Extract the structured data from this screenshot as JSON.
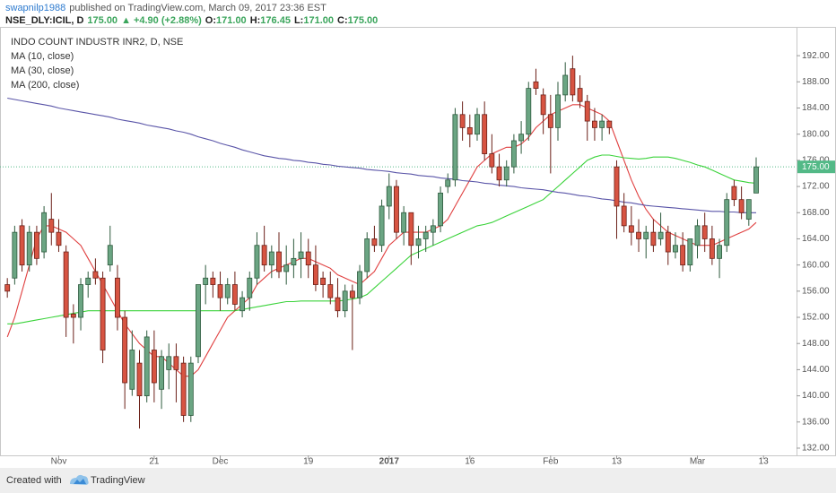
{
  "header": {
    "author": "swapnilp1988",
    "published": "published on TradingView.com, March 09, 2017 23:36 EST",
    "symbol": "NSE_DLY:ICIL, D",
    "price": "175.00",
    "change": "+4.90 (+2.88%)",
    "ohlc": [
      {
        "label": "O:",
        "value": "171.00"
      },
      {
        "label": "H:",
        "value": "176.45"
      },
      {
        "label": "L:",
        "value": "171.00"
      },
      {
        "label": "C:",
        "value": "175.00"
      }
    ]
  },
  "footer": {
    "created": "Created with",
    "brand": "TradingView"
  },
  "chart_data": {
    "type": "candlestick",
    "title": "INDO COUNT INDUSTR INR2, D, NSE",
    "up_color": "#6ba583",
    "down_color": "#d75442",
    "xlim": [
      -1,
      107.5
    ],
    "ylim": [
      130.9,
      196.4
    ],
    "xticks": [
      {
        "value": 7,
        "label": "Nov"
      },
      {
        "value": 20,
        "label": "21"
      },
      {
        "value": 29,
        "label": "Dec"
      },
      {
        "value": 41,
        "label": "19"
      },
      {
        "value": 52,
        "label": "2017"
      },
      {
        "value": 63,
        "label": "16"
      },
      {
        "value": 74,
        "label": "Feb"
      },
      {
        "value": 83,
        "label": "13"
      },
      {
        "value": 94,
        "label": "Mar"
      },
      {
        "value": 103,
        "label": "13"
      }
    ],
    "yticks": [
      {
        "value": 132,
        "label": "132.00"
      },
      {
        "value": 136,
        "label": "136.00"
      },
      {
        "value": 140,
        "label": "140.00"
      },
      {
        "value": 144,
        "label": "144.00"
      },
      {
        "value": 148,
        "label": "148.00"
      },
      {
        "value": 152,
        "label": "152.00"
      },
      {
        "value": 156,
        "label": "156.00"
      },
      {
        "value": 160,
        "label": "160.00"
      },
      {
        "value": 164,
        "label": "164.00"
      },
      {
        "value": 168,
        "label": "168.00"
      },
      {
        "value": 172,
        "label": "172.00"
      },
      {
        "value": 176,
        "label": "176.00"
      },
      {
        "value": 180,
        "label": "180.00"
      },
      {
        "value": 184,
        "label": "184.00"
      },
      {
        "value": 188,
        "label": "188.00"
      },
      {
        "value": 192,
        "label": "192.00"
      }
    ],
    "last_price": {
      "value": 175,
      "label": "175.00"
    },
    "last_price_color": "#53b987",
    "ohlc": [
      [
        157,
        158,
        155,
        156
      ],
      [
        158,
        166,
        157,
        165
      ],
      [
        166,
        167,
        159,
        160
      ],
      [
        160,
        166,
        159,
        165
      ],
      [
        165,
        166,
        160,
        161
      ],
      [
        162,
        169,
        161,
        168
      ],
      [
        167,
        171,
        163,
        165
      ],
      [
        165,
        167,
        162,
        163
      ],
      [
        162,
        163,
        149,
        152
      ],
      [
        152.5,
        154,
        148,
        152
      ],
      [
        152,
        158,
        150,
        157
      ],
      [
        157,
        159,
        155,
        158
      ],
      [
        159,
        161,
        157,
        158
      ],
      [
        158,
        159,
        145,
        147
      ],
      [
        160,
        166,
        159,
        163
      ],
      [
        158,
        160,
        150,
        152
      ],
      [
        152,
        153,
        138,
        142
      ],
      [
        141,
        150,
        140,
        147
      ],
      [
        145,
        147,
        135,
        140
      ],
      [
        140,
        150,
        139,
        149
      ],
      [
        147,
        150,
        139,
        142
      ],
      [
        141,
        147,
        138,
        146
      ],
      [
        144,
        148,
        141,
        146
      ],
      [
        146,
        148,
        139,
        144
      ],
      [
        145,
        146,
        136,
        137
      ],
      [
        137,
        146,
        136,
        145
      ],
      [
        146,
        157,
        145,
        157
      ],
      [
        157,
        160,
        154,
        158
      ],
      [
        158,
        159,
        155,
        157
      ],
      [
        157,
        159,
        153,
        155
      ],
      [
        155,
        158,
        154,
        157
      ],
      [
        157,
        159,
        153,
        154
      ],
      [
        153,
        156,
        152,
        155
      ],
      [
        155,
        159,
        153,
        158
      ],
      [
        158,
        165,
        157,
        163
      ],
      [
        163,
        166,
        159,
        160
      ],
      [
        160,
        163,
        158,
        162
      ],
      [
        162,
        165,
        158,
        159
      ],
      [
        159,
        163,
        157,
        160
      ],
      [
        160,
        164,
        158,
        161
      ],
      [
        161,
        165,
        158,
        162
      ],
      [
        162,
        164,
        158,
        160
      ],
      [
        160,
        163,
        156,
        157
      ],
      [
        158,
        159,
        155,
        157
      ],
      [
        157,
        159,
        154,
        155
      ],
      [
        155,
        158,
        152,
        153
      ],
      [
        153,
        157,
        152,
        156
      ],
      [
        156,
        157,
        147,
        155
      ],
      [
        155,
        160,
        154,
        159
      ],
      [
        159,
        165,
        158,
        164
      ],
      [
        164,
        166,
        162,
        163
      ],
      [
        163,
        170,
        162,
        169
      ],
      [
        169,
        174,
        167,
        172
      ],
      [
        172,
        173,
        164,
        165
      ],
      [
        165,
        169,
        163,
        168
      ],
      [
        168,
        168,
        160,
        163
      ],
      [
        163,
        166,
        161,
        164
      ],
      [
        164,
        166,
        162,
        165
      ],
      [
        165,
        167,
        163,
        166
      ],
      [
        166,
        172,
        165,
        171
      ],
      [
        172,
        174,
        171,
        173
      ],
      [
        173,
        184,
        172,
        183
      ],
      [
        183,
        185,
        179,
        181
      ],
      [
        181,
        183,
        178,
        180
      ],
      [
        180,
        184,
        179,
        183
      ],
      [
        183,
        185,
        176,
        177
      ],
      [
        177,
        180,
        174,
        175
      ],
      [
        175,
        177,
        172,
        173
      ],
      [
        173,
        176,
        172,
        175
      ],
      [
        175,
        180,
        174,
        179
      ],
      [
        179,
        182,
        177,
        180
      ],
      [
        180,
        188,
        179,
        187
      ],
      [
        188,
        190,
        186,
        187
      ],
      [
        186,
        187,
        180,
        183
      ],
      [
        183,
        186,
        174,
        181
      ],
      [
        181,
        188,
        179,
        186
      ],
      [
        186,
        191,
        185,
        189
      ],
      [
        190,
        192,
        185,
        186
      ],
      [
        187,
        189,
        184,
        185
      ],
      [
        185,
        186,
        179,
        182
      ],
      [
        182,
        184,
        179,
        181
      ],
      [
        181,
        183,
        179,
        182
      ],
      [
        182,
        182,
        180,
        181
      ],
      [
        175,
        176,
        164,
        169
      ],
      [
        169,
        171,
        165,
        166
      ],
      [
        166,
        169,
        163,
        165
      ],
      [
        165,
        167,
        162,
        164
      ],
      [
        164,
        166,
        161,
        165
      ],
      [
        165,
        167,
        162,
        163
      ],
      [
        164,
        168,
        163,
        165
      ],
      [
        165,
        166,
        160,
        162
      ],
      [
        162,
        165,
        161,
        163
      ],
      [
        163,
        165,
        159,
        160
      ],
      [
        160,
        164,
        159,
        164
      ],
      [
        163,
        167,
        161,
        166
      ],
      [
        166,
        168,
        162,
        164
      ],
      [
        164,
        166,
        160,
        161
      ],
      [
        161,
        164,
        158,
        163
      ],
      [
        163,
        171,
        162,
        170
      ],
      [
        172,
        173,
        169,
        170
      ],
      [
        170,
        172,
        167,
        168
      ],
      [
        167,
        170,
        166,
        170
      ],
      [
        171,
        176.45,
        171,
        175
      ]
    ],
    "series": [
      {
        "name": "MA (10, close)",
        "color": "#e04040",
        "values": [
          149,
          152,
          156,
          160,
          164,
          166,
          166,
          165.5,
          165,
          164,
          163,
          161,
          159,
          157,
          155,
          153,
          151,
          149.5,
          148,
          147,
          146,
          146,
          145,
          144,
          143,
          143,
          144,
          146,
          148,
          150,
          152,
          153,
          154,
          155,
          157,
          158,
          159,
          159.5,
          160,
          160.5,
          161,
          161,
          160.5,
          160,
          159.5,
          158.5,
          158,
          157.5,
          157,
          158,
          159,
          161,
          163,
          164,
          165,
          165,
          165,
          165,
          165.5,
          166,
          167,
          169,
          171,
          173,
          175,
          176,
          177,
          177.5,
          178,
          178,
          178.5,
          179.5,
          181,
          182,
          183,
          183.5,
          184,
          184.5,
          184.5,
          184,
          183.5,
          183,
          182,
          179,
          176,
          173,
          170.5,
          168.5,
          167,
          166,
          165,
          164.5,
          164,
          163.5,
          163,
          163,
          163,
          163.5,
          164,
          164.5,
          165,
          165.5,
          166.5
        ]
      },
      {
        "name": "MA (30, close)",
        "color": "#3ad33a",
        "values": [
          151,
          151,
          151.2,
          151.4,
          151.6,
          151.8,
          152,
          152.2,
          152.4,
          152.6,
          152.8,
          153,
          153,
          153,
          153,
          153,
          153,
          153,
          153,
          153,
          153,
          153,
          153,
          153,
          153,
          153,
          153,
          153,
          153,
          153,
          153,
          153,
          153.2,
          153.4,
          153.6,
          153.8,
          154,
          154.2,
          154.4,
          154.4,
          154.5,
          154.5,
          154.5,
          154.5,
          154.5,
          154.5,
          154.6,
          154.8,
          155,
          155.5,
          156.5,
          157.5,
          158.5,
          159.5,
          160.5,
          161.5,
          162,
          162.5,
          163,
          163.5,
          164,
          164.5,
          165,
          165.5,
          166,
          166.2,
          166.5,
          167,
          167.5,
          168,
          168.5,
          169,
          169.5,
          170,
          171,
          172,
          173,
          174,
          175,
          176,
          176.5,
          176.8,
          176.8,
          176.6,
          176.4,
          176.3,
          176.2,
          176.3,
          176.5,
          176.5,
          176.5,
          176.3,
          176,
          175.7,
          175.3,
          175,
          174.5,
          174,
          173.5,
          173,
          172.8,
          172.6,
          172.5
        ]
      },
      {
        "name": "MA (200, close)",
        "color": "#5a55a8",
        "values": [
          185.5,
          185.3,
          185.1,
          184.9,
          184.7,
          184.5,
          184.3,
          184.0,
          183.8,
          183.6,
          183.4,
          183.2,
          183.0,
          182.8,
          182.6,
          182.3,
          182.1,
          181.9,
          181.7,
          181.4,
          181.2,
          181.0,
          180.8,
          180.5,
          180.3,
          180.0,
          179.6,
          179.3,
          179.0,
          178.6,
          178.3,
          178.0,
          177.6,
          177.3,
          177.0,
          176.7,
          176.5,
          176.3,
          176.2,
          176.0,
          175.9,
          175.7,
          175.6,
          175.4,
          175.3,
          175.1,
          175.0,
          174.9,
          174.8,
          174.6,
          174.5,
          174.4,
          174.3,
          174.1,
          174.0,
          173.9,
          173.7,
          173.6,
          173.5,
          173.3,
          173.2,
          173.1,
          172.9,
          172.8,
          172.7,
          172.5,
          172.4,
          172.2,
          172.1,
          172.0,
          171.8,
          171.7,
          171.6,
          171.5,
          171.3,
          171.1,
          171.0,
          170.8,
          170.6,
          170.5,
          170.3,
          170.1,
          170.0,
          169.8,
          169.6,
          169.5,
          169.3,
          169.1,
          169.0,
          168.9,
          168.8,
          168.7,
          168.6,
          168.5,
          168.4,
          168.3,
          168.2,
          168.2,
          168.1,
          168.1,
          168.0,
          168.0,
          168.0
        ]
      }
    ]
  }
}
